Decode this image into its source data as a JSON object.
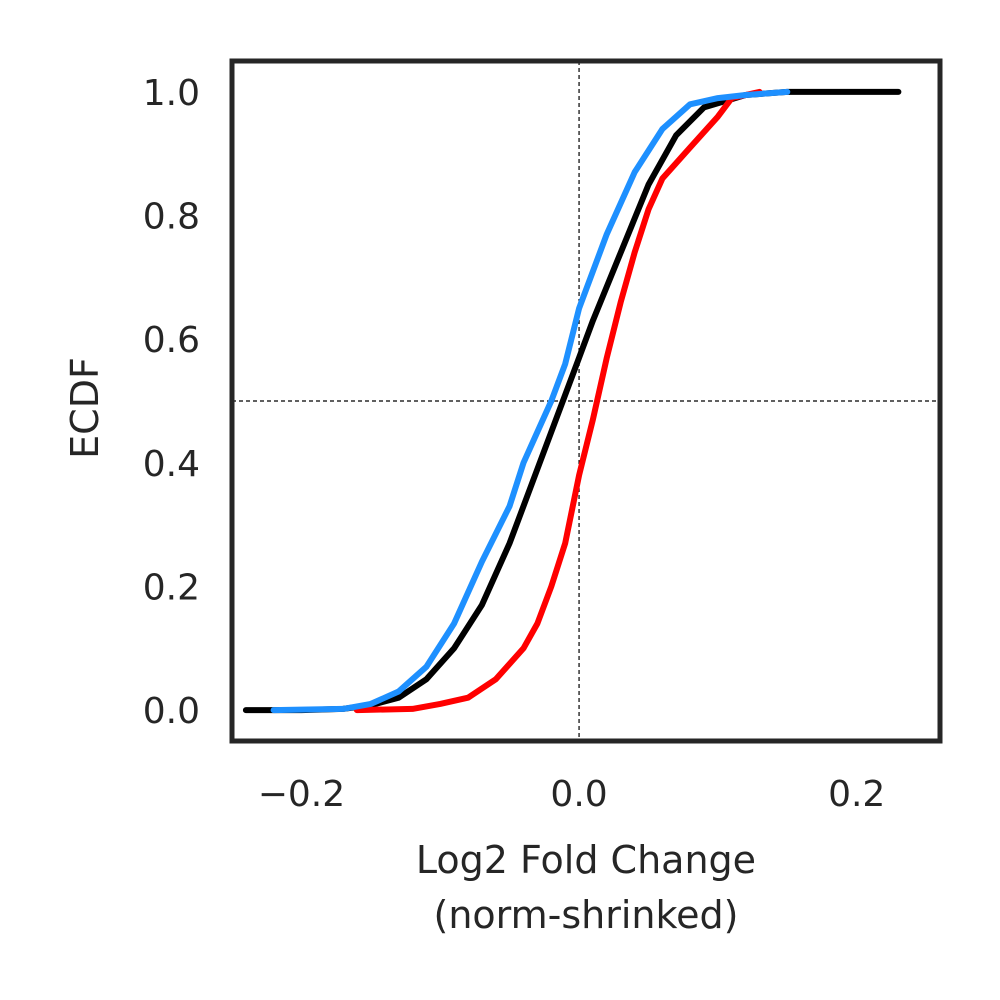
{
  "chart_data": {
    "type": "line",
    "title": "",
    "xlabel_lines": [
      "Log2 Fold Change",
      "(norm-shrinked)"
    ],
    "ylabel": "ECDF",
    "xlim": [
      -0.25,
      0.26
    ],
    "ylim": [
      -0.05,
      1.05
    ],
    "xticks": [
      -0.2,
      0.0,
      0.2
    ],
    "xtick_labels": [
      "−0.2",
      "0.0",
      "0.2"
    ],
    "yticks": [
      0.0,
      0.2,
      0.4,
      0.6,
      0.8,
      1.0
    ],
    "ytick_labels": [
      "0.0",
      "0.2",
      "0.4",
      "0.6",
      "0.8",
      "1.0"
    ],
    "grid": false,
    "reference_lines": {
      "x": 0.0,
      "y": 0.5,
      "style": "dashed"
    },
    "series": [
      {
        "color": "#000000",
        "x": [
          -0.24,
          -0.2,
          -0.17,
          -0.15,
          -0.13,
          -0.11,
          -0.09,
          -0.07,
          -0.05,
          -0.03,
          -0.01,
          0.0,
          0.01,
          0.03,
          0.05,
          0.07,
          0.09,
          0.12,
          0.15,
          0.23
        ],
        "y": [
          0.0,
          0.0,
          0.002,
          0.008,
          0.02,
          0.05,
          0.1,
          0.17,
          0.27,
          0.39,
          0.51,
          0.57,
          0.63,
          0.74,
          0.85,
          0.93,
          0.975,
          0.995,
          1.0,
          1.0
        ]
      },
      {
        "color": "#ff0000",
        "x": [
          -0.16,
          -0.12,
          -0.1,
          -0.08,
          -0.06,
          -0.04,
          -0.03,
          -0.02,
          -0.01,
          0.0,
          0.01,
          0.02,
          0.03,
          0.04,
          0.05,
          0.06,
          0.08,
          0.1,
          0.11,
          0.13
        ],
        "y": [
          0.0,
          0.002,
          0.01,
          0.02,
          0.05,
          0.1,
          0.14,
          0.2,
          0.27,
          0.38,
          0.47,
          0.57,
          0.66,
          0.74,
          0.81,
          0.86,
          0.91,
          0.96,
          0.99,
          1.0
        ]
      },
      {
        "color": "#1e90ff",
        "x": [
          -0.22,
          -0.17,
          -0.15,
          -0.13,
          -0.11,
          -0.09,
          -0.07,
          -0.05,
          -0.04,
          -0.03,
          -0.02,
          -0.01,
          0.0,
          0.02,
          0.04,
          0.06,
          0.08,
          0.1,
          0.12,
          0.15
        ],
        "y": [
          0.0,
          0.002,
          0.01,
          0.03,
          0.07,
          0.14,
          0.24,
          0.33,
          0.4,
          0.45,
          0.5,
          0.56,
          0.65,
          0.77,
          0.87,
          0.94,
          0.98,
          0.99,
          0.995,
          1.0
        ]
      }
    ]
  }
}
